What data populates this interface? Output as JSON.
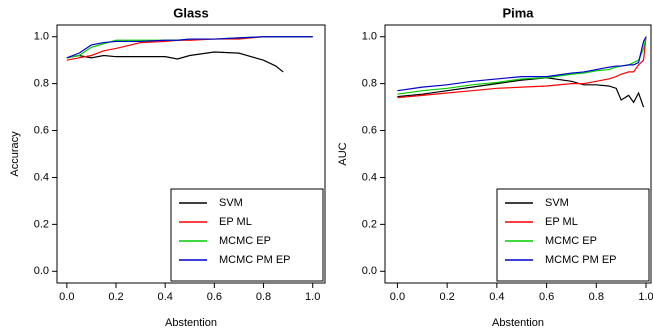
{
  "chart_data": [
    {
      "type": "line",
      "title": "Glass",
      "x_label": "Abstention",
      "y_label": "Accuracy",
      "x": [
        0,
        0.05,
        0.1,
        0.15,
        0.2,
        0.3,
        0.4,
        0.45,
        0.5,
        0.6,
        0.7,
        0.8,
        0.85,
        0.88,
        0.9,
        1.0
      ],
      "series": [
        {
          "name": "SVM",
          "color": "#000000",
          "values": [
            0.91,
            0.92,
            0.91,
            0.92,
            0.915,
            0.915,
            0.915,
            0.905,
            0.92,
            0.935,
            0.93,
            0.9,
            0.875,
            0.85,
            null,
            null
          ]
        },
        {
          "name": "EP ML",
          "color": "#ff0000",
          "values": [
            0.9,
            0.91,
            0.92,
            0.94,
            0.95,
            0.975,
            0.98,
            0.985,
            0.985,
            0.99,
            0.99,
            1.0,
            1.0,
            1.0,
            1.0,
            1.0
          ]
        },
        {
          "name": "MCMC EP",
          "color": "#00cc00",
          "values": [
            0.91,
            0.92,
            0.955,
            0.97,
            0.985,
            0.985,
            0.985,
            0.985,
            0.99,
            0.99,
            0.995,
            1.0,
            1.0,
            1.0,
            1.0,
            1.0
          ]
        },
        {
          "name": "MCMC PM EP",
          "color": "#0000cc",
          "values": [
            0.91,
            0.93,
            0.965,
            0.975,
            0.98,
            0.98,
            0.985,
            0.985,
            0.99,
            0.99,
            0.995,
            1.0,
            1.0,
            1.0,
            1.0,
            1.0
          ]
        }
      ],
      "xlim": [
        -0.04,
        1.05
      ],
      "ylim": [
        -0.05,
        1.05
      ],
      "xticks": [
        {
          "value": 0,
          "label": "0.0"
        },
        0.2,
        0.4,
        0.6,
        0.8,
        {
          "value": 1,
          "label": "1.0"
        }
      ],
      "yticks": [
        {
          "value": 0,
          "label": "0.0"
        },
        0.2,
        0.4,
        0.6,
        0.8,
        {
          "value": 1,
          "label": "1.0"
        }
      ],
      "legend": "lower right"
    },
    {
      "type": "line",
      "title": "Pima",
      "x_label": "Abstention",
      "y_label": "AUC",
      "x": [
        0,
        0.1,
        0.2,
        0.3,
        0.4,
        0.5,
        0.6,
        0.7,
        0.75,
        0.8,
        0.85,
        0.88,
        0.9,
        0.93,
        0.95,
        0.97,
        0.99,
        1.0
      ],
      "series": [
        {
          "name": "SVM",
          "color": "#000000",
          "values": [
            0.745,
            0.755,
            0.77,
            0.785,
            0.8,
            0.815,
            0.825,
            0.81,
            0.795,
            0.795,
            0.79,
            0.78,
            0.73,
            0.75,
            0.72,
            0.76,
            0.7,
            null
          ]
        },
        {
          "name": "EP ML",
          "color": "#ff0000",
          "values": [
            0.74,
            0.75,
            0.76,
            0.77,
            0.78,
            0.785,
            0.79,
            0.8,
            0.8,
            0.81,
            0.82,
            0.83,
            0.84,
            0.85,
            0.85,
            0.88,
            0.9,
            1.0
          ]
        },
        {
          "name": "MCMC EP",
          "color": "#00cc00",
          "values": [
            0.755,
            0.77,
            0.78,
            0.795,
            0.805,
            0.82,
            0.825,
            0.84,
            0.845,
            0.855,
            0.86,
            0.87,
            0.875,
            0.88,
            0.89,
            0.9,
            0.95,
            1.0
          ]
        },
        {
          "name": "MCMC PM EP",
          "color": "#0000cc",
          "values": [
            0.77,
            0.785,
            0.795,
            0.81,
            0.82,
            0.83,
            0.83,
            0.845,
            0.85,
            0.86,
            0.87,
            0.875,
            0.875,
            0.88,
            0.88,
            0.89,
            0.98,
            1.0
          ]
        }
      ],
      "xlim": [
        -0.05,
        1.02
      ],
      "ylim": [
        -0.05,
        1.05
      ],
      "xticks": [
        {
          "value": 0,
          "label": "0.0"
        },
        0.2,
        0.4,
        0.6,
        0.8,
        {
          "value": 1,
          "label": "1.0"
        }
      ],
      "yticks": [
        {
          "value": 0,
          "label": "0.0"
        },
        0.2,
        0.4,
        0.6,
        0.8,
        {
          "value": 1,
          "label": "1.0"
        }
      ],
      "legend": "lower right"
    }
  ]
}
